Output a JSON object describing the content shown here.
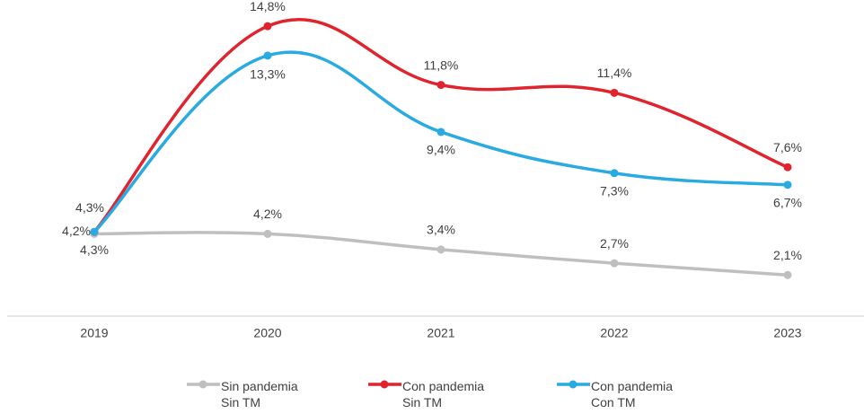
{
  "chart_data": {
    "type": "line",
    "categories": [
      "2019",
      "2020",
      "2021",
      "2022",
      "2023"
    ],
    "ylim": [
      0,
      16
    ],
    "series": [
      {
        "name": "Sin pandemia\nSin TM",
        "color": "#bfbfbf",
        "values": [
          4.2,
          4.2,
          3.4,
          2.7,
          2.1
        ],
        "value_labels": [
          "4,2%",
          "4,2%",
          "3,4%",
          "2,7%",
          "2,1%"
        ]
      },
      {
        "name": "Con pandemia\nSin TM",
        "color": "#e0242e",
        "values": [
          4.3,
          14.8,
          11.8,
          11.4,
          7.6
        ],
        "value_labels": [
          "4,3%",
          "14,8%",
          "11,8%",
          "11,4%",
          "7,6%"
        ]
      },
      {
        "name": "Con pandemia\nCon TM",
        "color": "#29abe2",
        "values": [
          4.3,
          13.3,
          9.4,
          7.3,
          6.7
        ],
        "value_labels": [
          "4,3%",
          "13,3%",
          "9,4%",
          "7,3%",
          "6,7%"
        ]
      }
    ]
  }
}
